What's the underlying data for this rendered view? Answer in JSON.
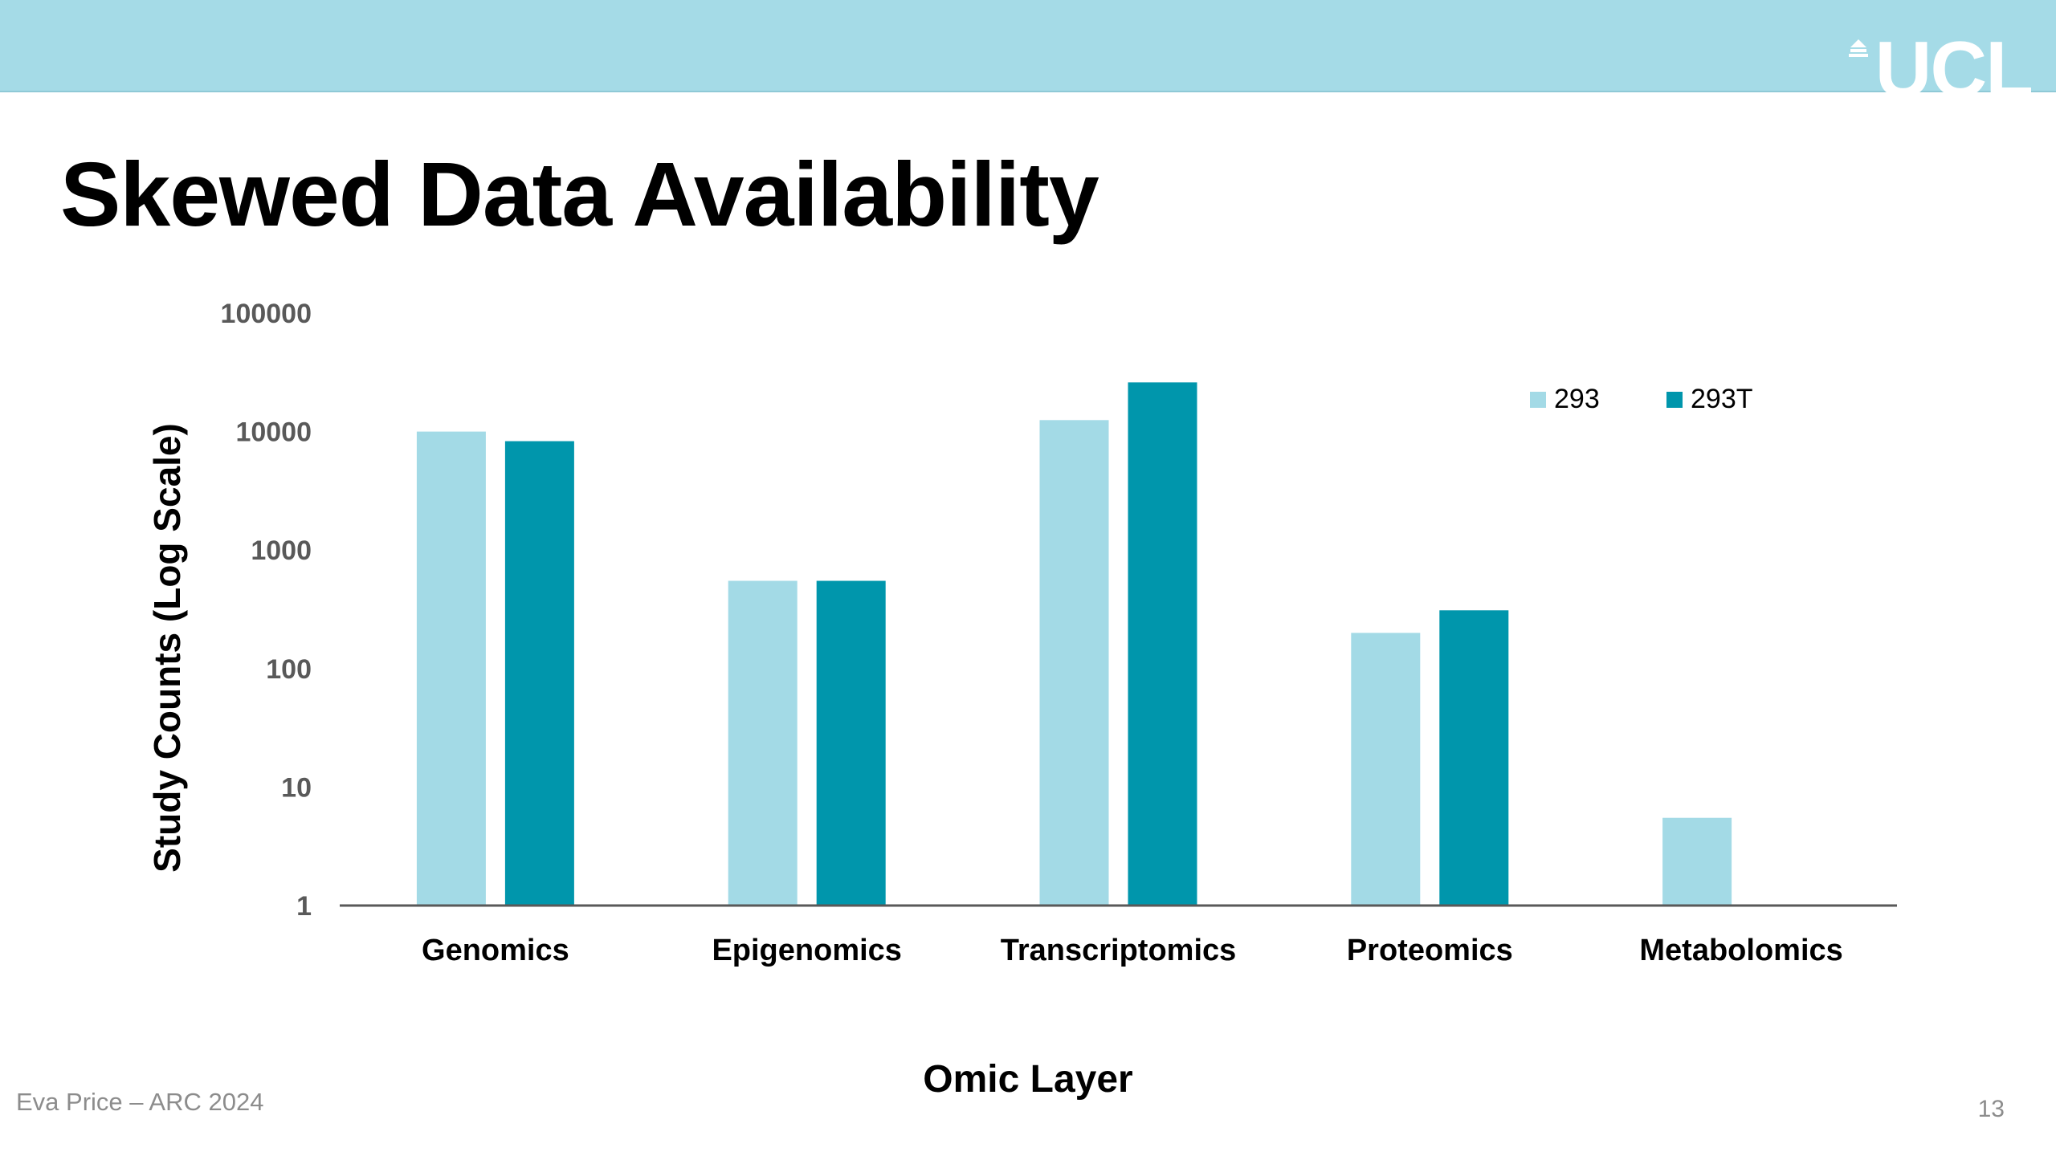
{
  "slide": {
    "title": "Skewed Data Availability",
    "footer_text": "Eva Price – ARC 2024",
    "page_number": "13",
    "logo_text": "UCL"
  },
  "colors": {
    "header_bar": "#a5dbe7",
    "series_293": "#a3dae6",
    "series_293T": "#0096ac",
    "axis": "#595959"
  },
  "chart_data": {
    "type": "bar",
    "xlabel": "Omic Layer",
    "ylabel": "Study Counts (Log Scale)",
    "y_scale": "log10",
    "ylim": [
      1,
      100000
    ],
    "y_ticks": [
      "1",
      "10",
      "100",
      "1000",
      "10000",
      "100000"
    ],
    "grid": false,
    "legend_position": "top-right",
    "categories": [
      "Genomics",
      "Epigenomics",
      "Transcriptomics",
      "Proteomics",
      "Metabolomics"
    ],
    "series": [
      {
        "name": "293",
        "values": [
          10000,
          550,
          12500,
          200,
          5.5
        ]
      },
      {
        "name": "293T",
        "values": [
          8300,
          550,
          26000,
          310,
          null
        ]
      }
    ]
  }
}
